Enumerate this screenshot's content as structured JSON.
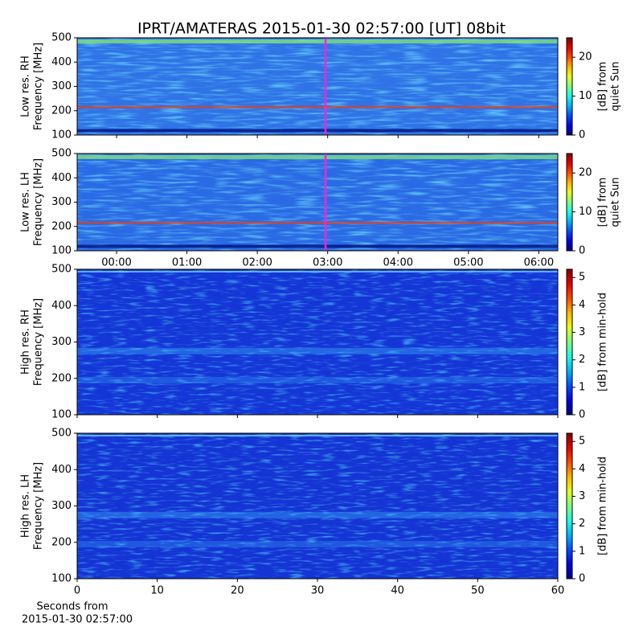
{
  "chart_data": [
    {
      "type": "spectrogram",
      "title": "IPRT/AMATERAS 2015-01-30 02:57:00 [UT]   08bit",
      "ylabel": [
        "Low res. RH",
        "Frequency [MHz]"
      ],
      "ylim": [
        100,
        500
      ],
      "yticks": [
        100,
        200,
        300,
        400,
        500
      ],
      "xlim": [
        -0.56,
        6.27
      ],
      "xticks": [
        0,
        1,
        2,
        3,
        4,
        5,
        6
      ],
      "show_xtick_labels": false,
      "cmap": "jet",
      "colorbar": {
        "label": [
          "[dB] from",
          "quiet Sun"
        ],
        "lim": [
          0,
          25
        ],
        "ticks": [
          0,
          10,
          20
        ]
      }
    },
    {
      "type": "spectrogram",
      "ylabel": [
        "Low res. LH",
        "Frequency [MHz]"
      ],
      "ylim": [
        100,
        500
      ],
      "yticks": [
        100,
        200,
        300,
        400,
        500
      ],
      "xlim": [
        -0.56,
        6.27
      ],
      "xticks": [
        {
          "value": 0,
          "label": "00:00"
        },
        {
          "value": 1,
          "label": "01:00"
        },
        {
          "value": 2,
          "label": "02:00"
        },
        {
          "value": 3,
          "label": "03:00"
        },
        {
          "value": 4,
          "label": "04:00"
        },
        {
          "value": 5,
          "label": "05:00"
        },
        {
          "value": 6,
          "label": "06:00"
        }
      ],
      "show_xtick_labels": true,
      "cmap": "jet",
      "colorbar": {
        "label": [
          "[dB] from",
          "quiet Sun"
        ],
        "lim": [
          0,
          25
        ],
        "ticks": [
          0,
          10,
          20
        ]
      }
    },
    {
      "type": "spectrogram",
      "ylabel": [
        "High res. RH",
        "Frequency [MHz]"
      ],
      "ylim": [
        100,
        500
      ],
      "yticks": [
        100,
        200,
        300,
        400,
        500
      ],
      "xlim": [
        0,
        60
      ],
      "xticks": [
        0,
        10,
        20,
        30,
        40,
        50,
        60
      ],
      "show_xtick_labels": false,
      "cmap": "jet",
      "colorbar": {
        "label": [
          "[dB] from min-hold"
        ],
        "lim": [
          0,
          5.3
        ],
        "ticks": [
          0,
          1,
          2,
          3,
          4,
          5
        ]
      }
    },
    {
      "type": "spectrogram",
      "ylabel": [
        "High res. LH",
        "Frequency [MHz]"
      ],
      "ylim": [
        100,
        500
      ],
      "yticks": [
        100,
        200,
        300,
        400,
        500
      ],
      "xlim": [
        0,
        60
      ],
      "xticks": [
        0,
        10,
        20,
        30,
        40,
        50,
        60
      ],
      "show_xtick_labels": true,
      "cmap": "jet",
      "xlabel": [
        "Seconds from",
        "2015-01-30 02:57:00"
      ],
      "colorbar": {
        "label": [
          "[dB] from min-hold"
        ],
        "lim": [
          0,
          5.3
        ],
        "ticks": [
          0,
          1,
          2,
          3,
          4,
          5
        ]
      }
    }
  ]
}
